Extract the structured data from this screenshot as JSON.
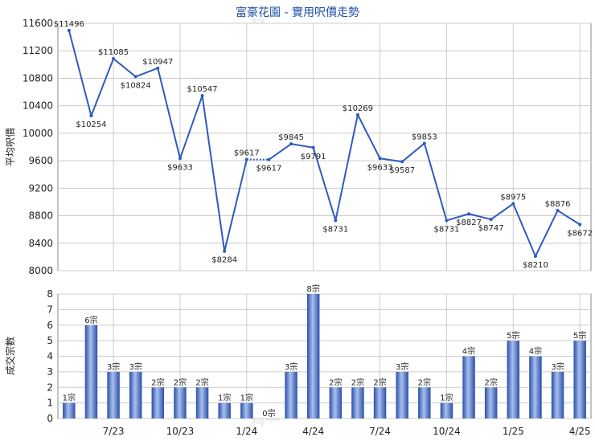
{
  "title": "富豪花園 - 實用呎價走勢",
  "watermark": "科一",
  "colors": {
    "line": "#2e5bbf",
    "bar_dark": "#2a4fa8",
    "bar_light": "#a9c0ee",
    "grid": "#cccccc",
    "title": "#1f4fa8"
  },
  "chart_data": [
    {
      "type": "line",
      "ylabel": "平均呎價",
      "ylim": [
        8000,
        11600
      ],
      "yticks": [
        8000,
        8400,
        8800,
        9200,
        9600,
        10000,
        10400,
        10800,
        11200,
        11600
      ],
      "grid": true,
      "series": [
        {
          "values": [
            11496,
            10254,
            11085,
            10824,
            10947,
            9633,
            10547,
            8284,
            9617,
            9617,
            9845,
            9791,
            8731,
            10269,
            9633,
            9587,
            9853,
            8731,
            8827,
            8747,
            8975,
            8210,
            8876,
            8672
          ],
          "labels": [
            "$11496",
            "$10254",
            "$11085",
            "$10824",
            "$10947",
            "$9633",
            "$10547",
            "$8284",
            "$9617",
            "$9617",
            "$9845",
            "$9791",
            "$8731",
            "$10269",
            "$9633",
            "$9587",
            "$9853",
            "$8731",
            "$8827",
            "$8747",
            "$8975",
            "$8210",
            "$8876",
            "$8672"
          ],
          "carried_over": [
            false,
            false,
            false,
            false,
            false,
            false,
            false,
            false,
            false,
            true,
            false,
            false,
            false,
            false,
            false,
            false,
            false,
            false,
            false,
            false,
            false,
            false,
            false,
            false
          ]
        }
      ]
    },
    {
      "type": "bar",
      "ylabel": "成交宗數",
      "ylim": [
        0,
        8
      ],
      "yticks": [
        0,
        1,
        2,
        3,
        4,
        5,
        6,
        7,
        8
      ],
      "grid": true,
      "categories": [
        "",
        "",
        "7/23",
        "",
        "",
        "10/23",
        "",
        "",
        "1/24",
        "",
        "",
        "4/24",
        "",
        "",
        "7/24",
        "",
        "",
        "10/24",
        "",
        "",
        "1/25",
        "",
        "",
        "4/25"
      ],
      "values": [
        1,
        6,
        3,
        3,
        2,
        2,
        2,
        1,
        1,
        0,
        3,
        8,
        2,
        2,
        2,
        3,
        2,
        1,
        4,
        2,
        5,
        4,
        3,
        5
      ],
      "labels": [
        "1宗",
        "6宗",
        "3宗",
        "3宗",
        "2宗",
        "2宗",
        "2宗",
        "1宗",
        "1宗",
        "0宗",
        "3宗",
        "8宗",
        "2宗",
        "2宗",
        "2宗",
        "3宗",
        "2宗",
        "1宗",
        "4宗",
        "2宗",
        "5宗",
        "4宗",
        "3宗",
        "5宗"
      ]
    }
  ]
}
